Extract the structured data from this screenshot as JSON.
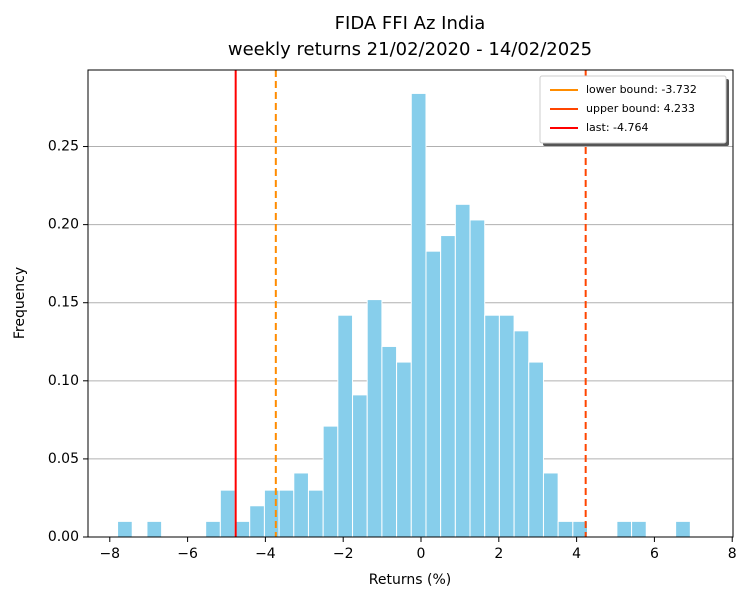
{
  "chart_data": {
    "type": "histogram",
    "title": "FIDA FFI Az India",
    "subtitle": "weekly returns 21/02/2020 - 14/02/2025",
    "xlabel": "Returns (%)",
    "ylabel": "Frequency",
    "color": "#87ceeb",
    "bins": [
      -7.8,
      -7.423,
      -7.045,
      -6.668,
      -6.29,
      -5.913,
      -5.535,
      -5.158,
      -4.78,
      -4.403,
      -4.025,
      -3.648,
      -3.27,
      -2.893,
      -2.515,
      -2.138,
      -1.76,
      -1.383,
      -1.005,
      -0.628,
      -0.25,
      0.128,
      0.505,
      0.883,
      1.26,
      1.638,
      2.015,
      2.393,
      2.77,
      3.148,
      3.525,
      3.903,
      4.28,
      4.658,
      5.035,
      5.413,
      5.79,
      6.168,
      6.545,
      6.923
    ],
    "counts": [
      0.01,
      0,
      0.01,
      0,
      0,
      0,
      0.01,
      0.03,
      0.01,
      0.02,
      0.03,
      0.03,
      0.041,
      0.03,
      0.071,
      0.142,
      0.091,
      0.152,
      0.122,
      0.112,
      0.284,
      0.183,
      0.193,
      0.213,
      0.203,
      0.142,
      0.142,
      0.132,
      0.112,
      0.041,
      0.01,
      0.01,
      0,
      0,
      0.01,
      0.01,
      0,
      0,
      0.01
    ],
    "vlines": [
      {
        "label": "lower bound: -3.732",
        "value": -3.732,
        "color": "#ff8c00",
        "dashed": true
      },
      {
        "label": "upper bound: 4.233",
        "value": 4.233,
        "color": "#ff4500",
        "dashed": true
      },
      {
        "label": "last: -4.764",
        "value": -4.764,
        "color": "#ff0000",
        "dashed": false
      }
    ],
    "xlim": [
      -8.56,
      8.02
    ],
    "ylim": [
      0,
      0.299
    ],
    "xticks": [
      {
        "value": -8,
        "label": "−8"
      },
      {
        "value": -6,
        "label": "−6"
      },
      {
        "value": -4,
        "label": "−4"
      },
      {
        "value": -2,
        "label": "−2"
      },
      0,
      2,
      4,
      6,
      8
    ],
    "yticks": [
      {
        "value": 0,
        "label": "0.00"
      },
      {
        "value": 0.05,
        "label": "0.05"
      },
      {
        "value": 0.1,
        "label": "0.10"
      },
      {
        "value": 0.15,
        "label": "0.15"
      },
      {
        "value": 0.2,
        "label": "0.20"
      },
      {
        "value": 0.25,
        "label": "0.25"
      }
    ],
    "grid": "y",
    "legend": "upper right"
  }
}
